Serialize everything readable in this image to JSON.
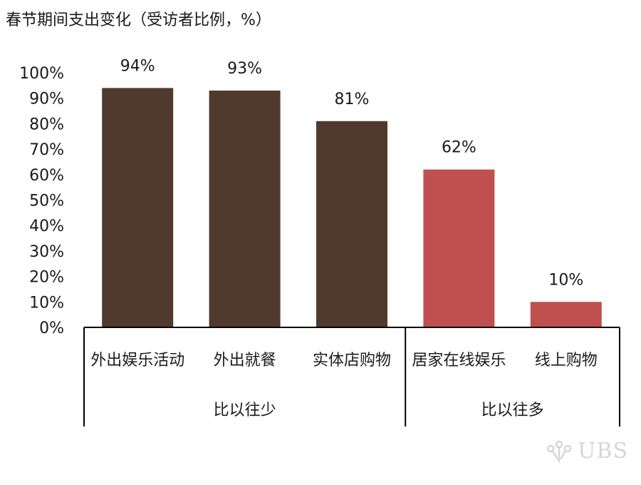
{
  "title": "春节期间支出变化（受访者比例，%）",
  "logo_text": "UBS",
  "chart_data": {
    "type": "bar",
    "title": "春节期间支出变化（受访者比例，%）",
    "categories": [
      "外出娱乐活动",
      "外出就餐",
      "实体店购物",
      "居家在线娱乐",
      "线上购物"
    ],
    "values": [
      94,
      93,
      81,
      62,
      10
    ],
    "data_labels": [
      "94%",
      "93%",
      "81%",
      "62%",
      "10%"
    ],
    "groups": [
      {
        "label": "比以往少",
        "categories": [
          "外出娱乐活动",
          "外出就餐",
          "实体店购物"
        ],
        "color": "#4f3a2d"
      },
      {
        "label": "比以往多",
        "categories": [
          "居家在线娱乐",
          "线上购物"
        ],
        "color": "#c05050"
      }
    ],
    "ylim": [
      0,
      100
    ],
    "y_ticks": [
      "0%",
      "10%",
      "20%",
      "30%",
      "40%",
      "50%",
      "60%",
      "70%",
      "80%",
      "90%",
      "100%"
    ],
    "grid": false,
    "legend": "none"
  }
}
